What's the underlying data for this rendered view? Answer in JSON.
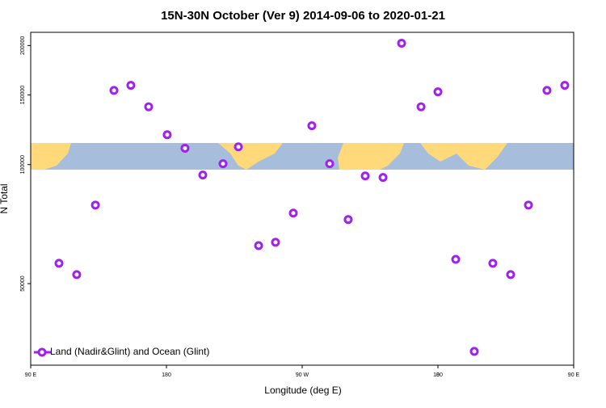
{
  "chart_data": {
    "type": "scatter",
    "title": "15N-30N October (Ver 9)   2014-09-06 to 2020-01-21",
    "xlabel": "Longitude (deg E)",
    "ylabel": "N Total",
    "yscale": "log",
    "legend": "bottom-left",
    "xlim": [
      90,
      450
    ],
    "ylim": [
      31100,
      216000
    ],
    "xticks": [
      {
        "value": 90,
        "label": "90 E"
      },
      180,
      {
        "value": 270,
        "label": "90 W"
      },
      {
        "value": 360,
        "label": "0"
      },
      {
        "value": 450,
        "label": "90 E"
      },
      {
        "value": 540,
        "label": "180"
      }
    ],
    "yticks": [
      50000,
      100000,
      150000,
      200000
    ],
    "series": [
      {
        "name": "Land (Nadir&Glint) and Ocean (Glint)",
        "color": "#a020f0",
        "x": [
          108.75,
          120.5,
          132.9,
          145.2,
          156.4,
          168.2,
          180.5,
          192.3,
          204.1,
          217.5,
          227.7,
          241.1,
          252.3,
          264.1,
          276.4,
          288.2,
          300.5,
          311.8,
          323.6,
          335.9,
          348.8,
          360,
          371.8,
          384.1,
          396.4,
          408.2,
          420,
          432.3,
          444.1
        ],
        "values": [
          56300,
          52700,
          79000,
          154000,
          158600,
          140000,
          119000,
          110000,
          94100,
          100500,
          110900,
          62400,
          63600,
          75400,
          125400,
          100500,
          72600,
          93600,
          92800,
          202700,
          140000,
          152800,
          57600,
          33700,
          56300,
          52700,
          79000,
          154000,
          158600
        ]
      }
    ]
  }
}
